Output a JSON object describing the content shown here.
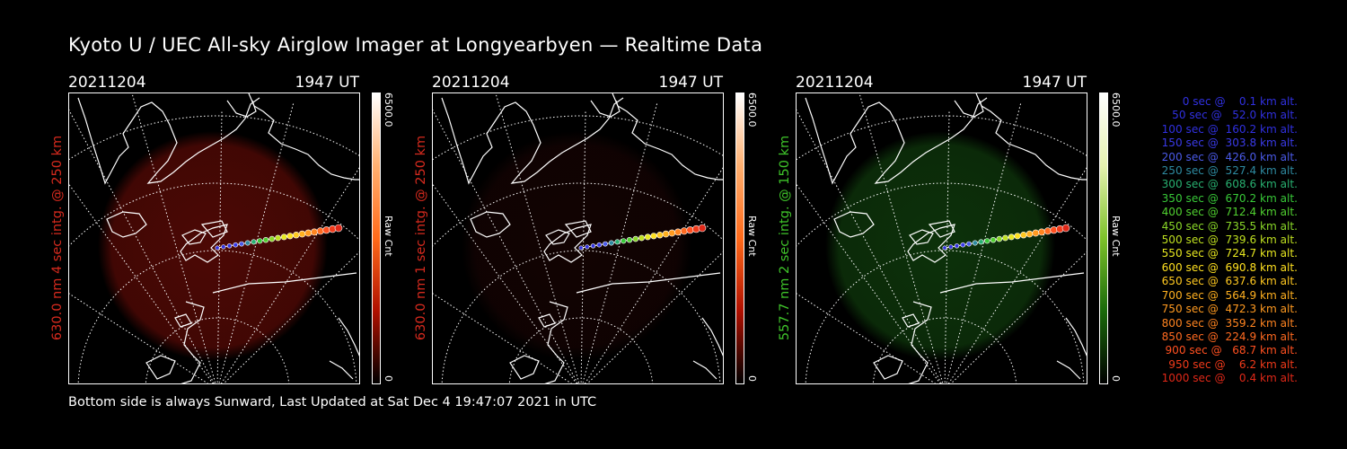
{
  "title": "Kyoto U / UEC All-sky Airglow Imager at Longyearbyen — Realtime Data",
  "footer": "Bottom side is always Sunward, Last Updated at Sat Dec  4 19:47:07 2021 in UTC",
  "panels": [
    {
      "date": "20211204",
      "time": "1947 UT",
      "ylabel": "630.0 nm 4 sec intg. @ 250 km",
      "label_color": "#d62a1e",
      "glow_color": "#5a0a06",
      "glow_opacity": 0.85,
      "cbar_max": "6500.0",
      "cbar_min": "0",
      "cbar_label": "Raw Cnt",
      "cbar_colors": [
        "#ffffff",
        "#ffb070",
        "#ff6a1a",
        "#b01000",
        "#000000"
      ]
    },
    {
      "date": "20211204",
      "time": "1947 UT",
      "ylabel": "630.0 nm 1 sec intg. @ 250 km",
      "label_color": "#d62a1e",
      "glow_color": "#1e0504",
      "glow_opacity": 0.6,
      "cbar_max": "6500.0",
      "cbar_min": "0",
      "cbar_label": "Raw Cnt",
      "cbar_colors": [
        "#ffffff",
        "#ffb070",
        "#ff6a1a",
        "#b01000",
        "#000000"
      ]
    },
    {
      "date": "20211204",
      "time": "1947 UT",
      "ylabel": "557.7 nm 2 sec intg. @ 150 km",
      "label_color": "#3fc42a",
      "glow_color": "#0f3a0c",
      "glow_opacity": 0.85,
      "cbar_max": "6500.0",
      "cbar_min": "0",
      "cbar_label": "Raw Cnt",
      "cbar_colors": [
        "#ffffff",
        "#e6f2b0",
        "#7ec22a",
        "#1a6a0a",
        "#000000"
      ]
    }
  ],
  "legend": [
    {
      "text": "   0 sec @    0.1 km alt.",
      "color": "#3030e0"
    },
    {
      "text": "  50 sec @   52.0 km alt.",
      "color": "#3030e0"
    },
    {
      "text": " 100 sec @  160.2 km alt.",
      "color": "#3030e0"
    },
    {
      "text": " 150 sec @  303.8 km alt.",
      "color": "#3a3ae8"
    },
    {
      "text": " 200 sec @  426.0 km alt.",
      "color": "#4a5ae8"
    },
    {
      "text": " 250 sec @  527.4 km alt.",
      "color": "#2e8aa0"
    },
    {
      "text": " 300 sec @  608.6 km alt.",
      "color": "#28b070"
    },
    {
      "text": " 350 sec @  670.2 km alt.",
      "color": "#38c838"
    },
    {
      "text": " 400 sec @  712.4 km alt.",
      "color": "#50d030"
    },
    {
      "text": " 450 sec @  735.5 km alt.",
      "color": "#8ad828"
    },
    {
      "text": " 500 sec @  739.6 km alt.",
      "color": "#bfe020"
    },
    {
      "text": " 550 sec @  724.7 km alt.",
      "color": "#e8e820"
    },
    {
      "text": " 600 sec @  690.8 km alt.",
      "color": "#ffe020"
    },
    {
      "text": " 650 sec @  637.6 km alt.",
      "color": "#ffc820"
    },
    {
      "text": " 700 sec @  564.9 km alt.",
      "color": "#ffb020"
    },
    {
      "text": " 750 sec @  472.3 km alt.",
      "color": "#ff9a20"
    },
    {
      "text": " 800 sec @  359.2 km alt.",
      "color": "#ff8420"
    },
    {
      "text": " 850 sec @  224.9 km alt.",
      "color": "#ff6a20"
    },
    {
      "text": " 900 sec @   68.7 km alt.",
      "color": "#ff5020"
    },
    {
      "text": " 950 sec @    6.2 km alt.",
      "color": "#f03a1a"
    },
    {
      "text": "1000 sec @    0.4 km alt.",
      "color": "#e02818"
    }
  ]
}
